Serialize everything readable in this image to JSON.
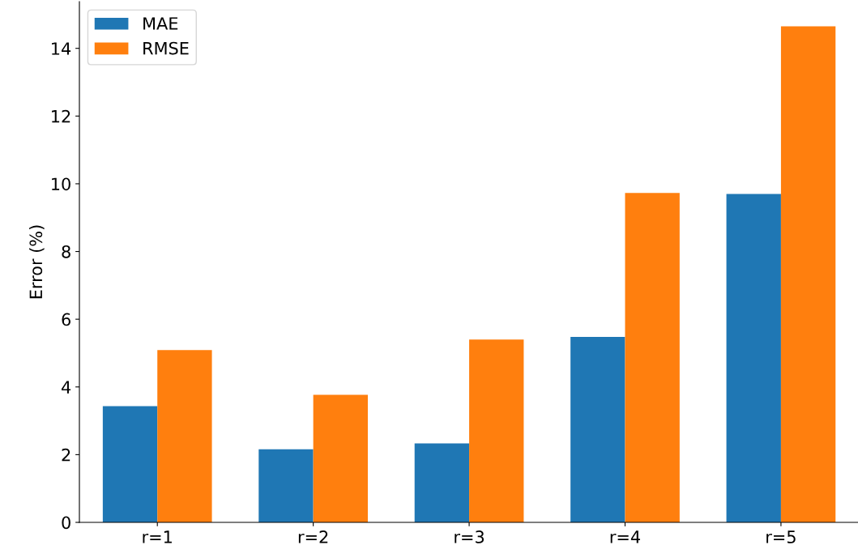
{
  "chart_data": {
    "type": "bar",
    "ylabel": "Error (%)",
    "categories": [
      "r=1",
      "r=2",
      "r=3",
      "r=4",
      "r=5"
    ],
    "series": [
      {
        "name": "MAE",
        "color": "#1f77b4",
        "values": [
          3.43,
          2.16,
          2.33,
          5.48,
          9.7
        ]
      },
      {
        "name": "RMSE",
        "color": "#ff7f0e",
        "values": [
          5.09,
          3.77,
          5.4,
          9.73,
          14.65
        ]
      }
    ],
    "ylim": [
      0,
      15.38
    ],
    "yticks": [
      0,
      2,
      4,
      6,
      8,
      10,
      12,
      14
    ],
    "grid": false,
    "legend": "top left"
  }
}
